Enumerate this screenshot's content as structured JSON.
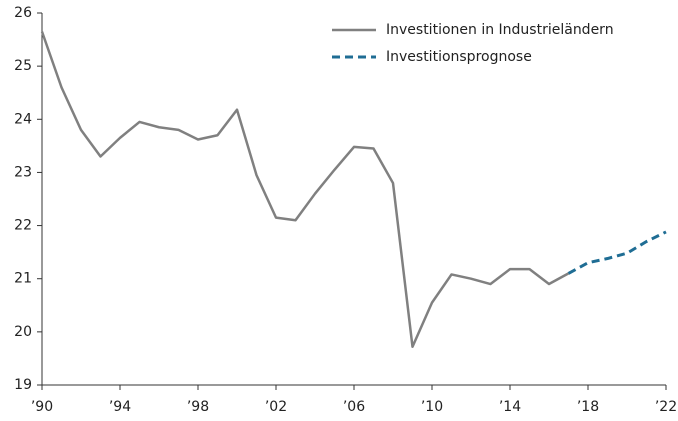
{
  "chart_data": {
    "type": "line",
    "x": [
      1990,
      1991,
      1992,
      1993,
      1994,
      1995,
      1996,
      1997,
      1998,
      1999,
      2000,
      2001,
      2002,
      2003,
      2004,
      2005,
      2006,
      2007,
      2008,
      2009,
      2010,
      2011,
      2012,
      2013,
      2014,
      2015,
      2016,
      2017,
      2018,
      2019,
      2020,
      2021,
      2022
    ],
    "series": [
      {
        "name": "Investitionen in Industrieländern",
        "color": "#808080",
        "dash": false,
        "values": [
          25.65,
          24.6,
          23.8,
          23.3,
          23.65,
          23.95,
          23.85,
          23.8,
          23.62,
          23.7,
          24.18,
          22.95,
          22.15,
          22.1,
          22.6,
          23.05,
          23.48,
          23.45,
          22.8,
          19.72,
          20.55,
          21.08,
          21.0,
          20.9,
          21.18,
          21.18,
          20.9,
          21.1,
          null,
          null,
          null,
          null,
          null
        ]
      },
      {
        "name": "Investitionsprognose",
        "color": "#1f6d94",
        "dash": true,
        "values": [
          null,
          null,
          null,
          null,
          null,
          null,
          null,
          null,
          null,
          null,
          null,
          null,
          null,
          null,
          null,
          null,
          null,
          null,
          null,
          null,
          null,
          null,
          null,
          null,
          null,
          null,
          null,
          21.1,
          21.3,
          21.38,
          21.48,
          21.7,
          21.88
        ]
      }
    ],
    "xlim": [
      1990,
      2022
    ],
    "xticks": [
      {
        "value": 1990,
        "label": "’90"
      },
      {
        "value": 1994,
        "label": "’94"
      },
      {
        "value": 1998,
        "label": "’98"
      },
      {
        "value": 2002,
        "label": "’02"
      },
      {
        "value": 2006,
        "label": "’06"
      },
      {
        "value": 2010,
        "label": "’10"
      },
      {
        "value": 2014,
        "label": "’14"
      },
      {
        "value": 2018,
        "label": "’18"
      },
      {
        "value": 2022,
        "label": "’22"
      }
    ],
    "ylim": [
      19,
      26
    ],
    "yticks": [
      19,
      20,
      21,
      22,
      23,
      24,
      25,
      26
    ],
    "grid": false,
    "legend": "top-right"
  }
}
